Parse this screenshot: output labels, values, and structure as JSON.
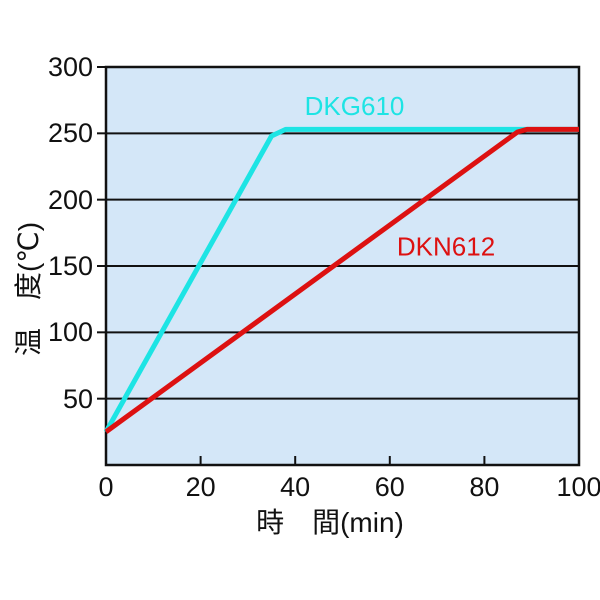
{
  "page": {
    "background": "#ffffff",
    "axis_color": "#111111"
  },
  "chart_data": {
    "type": "line",
    "title": "",
    "xlabel": "時　間(min)",
    "ylabel": "温　度(℃)",
    "xlim": [
      0,
      100
    ],
    "ylim": [
      0,
      300
    ],
    "x_ticks": [
      "0",
      "20",
      "40",
      "60",
      "80",
      "100"
    ],
    "x_tick_values": [
      0,
      20,
      40,
      60,
      80,
      100
    ],
    "y_ticks": [
      "50",
      "100",
      "150",
      "200",
      "250",
      "300"
    ],
    "y_tick_values": [
      50,
      100,
      150,
      200,
      250,
      300
    ],
    "grid": "horizontal-only",
    "plot_background": "#d4e7f8",
    "legend_position": "inline-labels",
    "series": [
      {
        "name": "DKG610",
        "color": "#1de4e4",
        "points": [
          [
            0,
            25
          ],
          [
            35,
            248
          ],
          [
            38,
            253
          ],
          [
            100,
            253
          ]
        ],
        "label_pos": [
          42,
          264
        ],
        "description_visible_text": "DKG610"
      },
      {
        "name": "DKN612",
        "color": "#dd1111",
        "points": [
          [
            0,
            25
          ],
          [
            87,
            251
          ],
          [
            89,
            253
          ],
          [
            100,
            253
          ]
        ],
        "label_pos": [
          61.5,
          158
        ],
        "description_visible_text": "DKN612"
      }
    ]
  }
}
